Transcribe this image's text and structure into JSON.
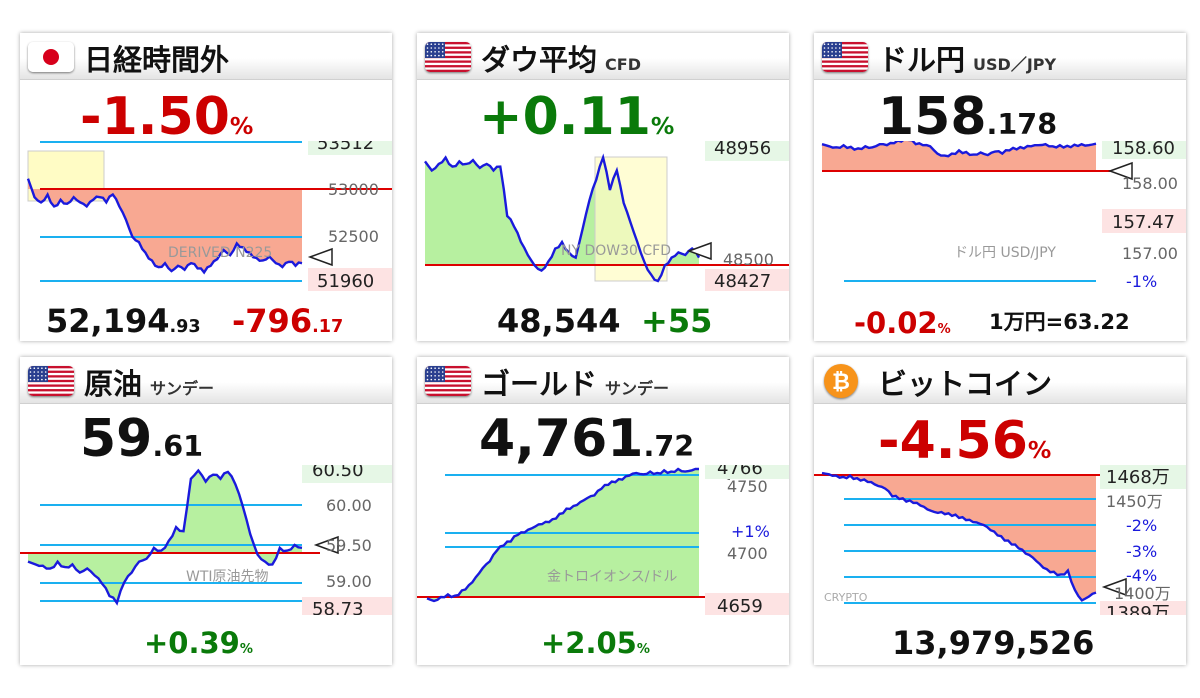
{
  "panels": [
    {
      "id": "nikkei",
      "flag": "jp",
      "title": "日経時間外",
      "subtitle": "",
      "big_main": "-1.50",
      "big_small": "%",
      "big_color": "red",
      "chart_label": "DERIVED N225",
      "axis_labels": {
        "l1": "53512",
        "l2": "53000",
        "l3": "52500",
        "l4": "51960"
      },
      "bottom_main1": "52,194",
      "bottom_small1": ".93",
      "bottom_main2": "-796",
      "bottom_small2": ".17",
      "chart_data": {
        "type": "line",
        "y_ticks": [
          53512,
          53000,
          52500,
          51960
        ],
        "reference": 53000,
        "ylim": [
          51960,
          53512
        ],
        "shape": [
          0.76,
          0.62,
          0.58,
          0.64,
          0.55,
          0.6,
          0.57,
          0.62,
          0.58,
          0.55,
          0.6,
          0.62,
          0.58,
          0.64,
          0.55,
          0.45,
          0.32,
          0.28,
          0.2,
          0.14,
          0.09,
          0.12,
          0.06,
          0.1,
          0.07,
          0.12,
          0.08,
          0.05,
          0.1,
          0.15,
          0.22,
          0.18,
          0.27,
          0.24,
          0.2,
          0.16,
          0.14,
          0.17,
          0.12,
          0.09,
          0.13,
          0.1,
          0.12
        ]
      }
    },
    {
      "id": "dow",
      "flag": "us",
      "title": "ダウ平均",
      "subtitle": "CFD",
      "big_main": "+0.11",
      "big_small": "%",
      "big_color": "green",
      "chart_label": "NY DOW30 CFD",
      "axis_labels": {
        "l1": "48956",
        "l2": "48500",
        "l3": "48427"
      },
      "bottom_main1": "48,544",
      "bottom_main2": "+55",
      "chart_data": {
        "type": "line",
        "y_ticks": [
          48956,
          48500,
          48427
        ],
        "reference": 48500,
        "ylim": [
          48427,
          48956
        ],
        "shape": [
          0.92,
          0.85,
          0.9,
          0.95,
          0.88,
          0.92,
          0.9,
          0.93,
          0.87,
          0.9,
          0.85,
          0.88,
          0.5,
          0.42,
          0.3,
          0.2,
          0.12,
          0.08,
          0.15,
          0.25,
          0.3,
          0.22,
          0.18,
          0.4,
          0.62,
          0.78,
          0.95,
          0.7,
          0.85,
          0.6,
          0.45,
          0.3,
          0.15,
          0.05,
          0.0,
          0.12,
          0.18,
          0.22,
          0.2,
          0.25,
          0.18
        ]
      }
    },
    {
      "id": "usdjpy",
      "flag": "us",
      "title": "ドル円",
      "subtitle": "USD／JPY",
      "big_main": "158",
      "big_small": ".178",
      "big_color": "black",
      "chart_label": "ドル円 USD/JPY",
      "axis_labels": {
        "l1": "158.60",
        "l2": "158.00",
        "l3": "157.47",
        "l4": "157.00",
        "l5": "-1%"
      },
      "bottom_main1": "-0.02",
      "bottom_small1": "%",
      "bottom_rate": "1万円=63.22",
      "chart_data": {
        "type": "line",
        "y_ticks": [
          158.6,
          158.0,
          157.47,
          157.0
        ],
        "reference": 158.16,
        "ylim": [
          156.9,
          158.7
        ],
        "shape": [
          0.9,
          0.86,
          0.84,
          0.88,
          0.85,
          0.82,
          0.86,
          0.84,
          0.9,
          0.88,
          0.92,
          0.95,
          0.98,
          0.9,
          0.88,
          0.86,
          0.72,
          0.68,
          0.72,
          0.78,
          0.75,
          0.7,
          0.74,
          0.69,
          0.76,
          0.72,
          0.78,
          0.8,
          0.82,
          0.86,
          0.88,
          0.9,
          0.86,
          0.88,
          0.87,
          0.89,
          0.9,
          0.88,
          0.91
        ]
      }
    },
    {
      "id": "oil",
      "flag": "us",
      "title": "原油",
      "subtitle": "サンデー",
      "big_main": "59",
      "big_small": ".61",
      "big_color": "black",
      "chart_label": "WTI原油先物",
      "axis_labels": {
        "l1": "60.50",
        "l2": "60.00",
        "l3": "59.50",
        "l4": "59.00",
        "l5": "58.73"
      },
      "bottom_main1": "+0.39",
      "bottom_small1": "%",
      "bottom_color": "green",
      "chart_data": {
        "type": "line",
        "y_ticks": [
          60.5,
          60.0,
          59.5,
          59.0,
          58.73
        ],
        "reference": 59.22,
        "ylim": [
          58.73,
          60.5
        ],
        "shape": [
          0.3,
          0.28,
          0.27,
          0.25,
          0.3,
          0.26,
          0.28,
          0.22,
          0.25,
          0.2,
          0.14,
          0.05,
          0.0,
          0.15,
          0.22,
          0.3,
          0.32,
          0.4,
          0.38,
          0.45,
          0.55,
          0.52,
          0.9,
          0.96,
          0.88,
          0.93,
          0.9,
          0.95,
          0.86,
          0.7,
          0.5,
          0.35,
          0.3,
          0.28,
          0.4,
          0.38,
          0.42,
          0.4
        ]
      }
    },
    {
      "id": "gold",
      "flag": "us",
      "title": "ゴールド",
      "subtitle": "サンデー",
      "big_main": "4,761",
      "big_small": ".72",
      "big_color": "black",
      "chart_label": "金トロイオンス/ドル",
      "axis_labels": {
        "l1": "4766",
        "l2": "4750",
        "l3": "+1%",
        "l4": "4700",
        "l5": "4659"
      },
      "bottom_main1": "+2.05",
      "bottom_small1": "%",
      "bottom_color": "green",
      "chart_data": {
        "type": "line",
        "y_ticks": [
          4766,
          4750,
          4700,
          4659
        ],
        "reference": 4666,
        "ylim": [
          4659,
          4766
        ],
        "shape": [
          0.02,
          0.0,
          0.03,
          0.05,
          0.04,
          0.08,
          0.12,
          0.18,
          0.25,
          0.3,
          0.38,
          0.42,
          0.45,
          0.5,
          0.52,
          0.55,
          0.58,
          0.6,
          0.62,
          0.66,
          0.7,
          0.72,
          0.75,
          0.78,
          0.8,
          0.85,
          0.88,
          0.9,
          0.92,
          0.95,
          0.97,
          0.96,
          0.98,
          0.97,
          0.99,
          0.98,
          1.0,
          0.98,
          0.99,
          1.0
        ]
      }
    },
    {
      "id": "btc",
      "flag": "btc",
      "title": "ビットコイン",
      "subtitle": "",
      "big_main": "-4.56",
      "big_small": "%",
      "big_color": "red",
      "chart_label": "CRYPTO",
      "axis_labels": {
        "l1": "1468万",
        "l2": "1450万",
        "l3": "-2%",
        "l4": "-3%",
        "l5": "-4%",
        "l6": "1400万",
        "l7": "1389万"
      },
      "bottom_main1": "13,979,526",
      "chart_data": {
        "type": "line",
        "y_ticks": [
          1468,
          1450,
          1400,
          1389
        ],
        "reference": 1468,
        "ylim": [
          1389,
          1468
        ],
        "shape": [
          1.0,
          0.99,
          0.98,
          0.97,
          0.98,
          0.96,
          0.95,
          0.93,
          0.9,
          0.88,
          0.82,
          0.8,
          0.78,
          0.77,
          0.75,
          0.72,
          0.7,
          0.7,
          0.69,
          0.68,
          0.66,
          0.64,
          0.62,
          0.6,
          0.56,
          0.52,
          0.48,
          0.45,
          0.42,
          0.38,
          0.35,
          0.3,
          0.26,
          0.24,
          0.22,
          0.25,
          0.1,
          0.02,
          0.05,
          0.08
        ]
      }
    }
  ]
}
